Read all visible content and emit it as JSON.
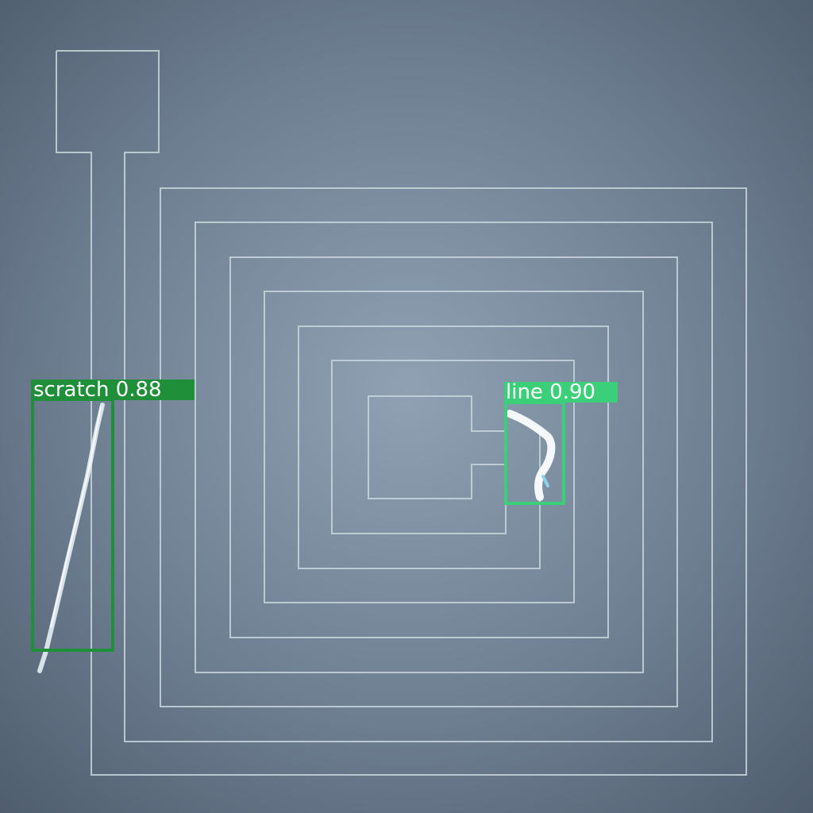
{
  "image": {
    "description_kind": "microscope photo of spiral coil circuit with detection boxes",
    "background_color": "#5b6b7d",
    "trace_color": "#c9d6dd"
  },
  "detections": [
    {
      "label": "scratch 0.88",
      "color": "#1f8f3a"
    },
    {
      "label": "line 0.90",
      "color": "#3ccf7a"
    }
  ]
}
